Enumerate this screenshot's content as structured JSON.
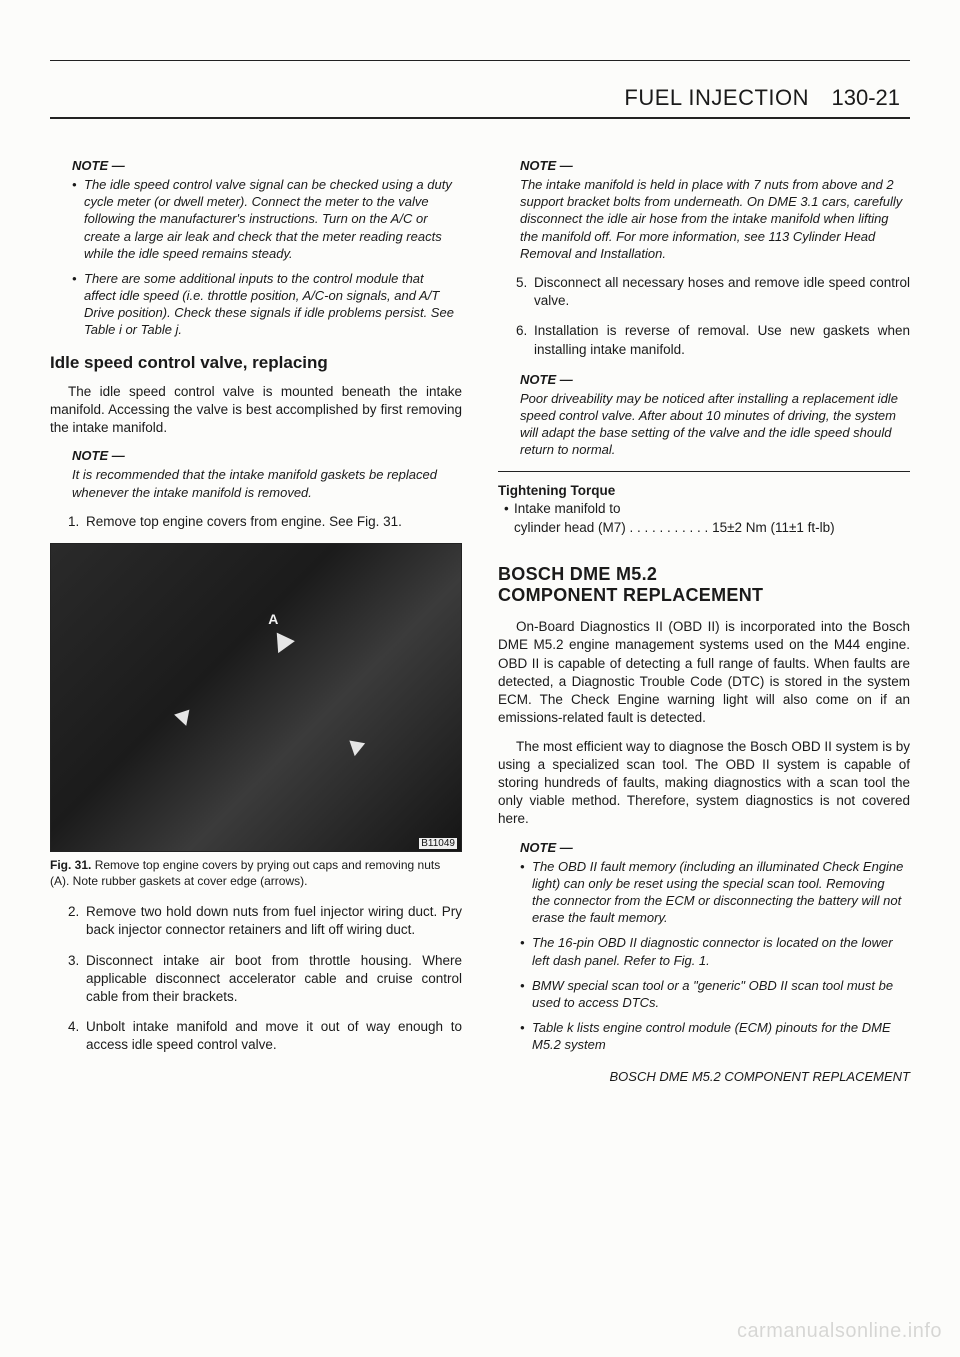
{
  "header": {
    "section": "FUEL INJECTION",
    "page_number": "130-21"
  },
  "left_col": {
    "note1_head": "NOTE —",
    "note1_items": [
      "The idle speed control valve signal can be checked using a duty cycle meter (or dwell meter). Connect the meter to the valve following the manufacturer's instructions. Turn on the A/C or create a large air leak and check that the meter reading reacts while the idle speed remains steady.",
      "There are some additional inputs to the control module that affect idle speed (i.e. throttle position, A/C-on signals, and A/T Drive position). Check these signals if idle problems persist. See Table i or Table j."
    ],
    "h_sub": "Idle speed control valve, replacing",
    "para1": "The idle speed control valve is mounted beneath the intake manifold. Accessing the valve is best accomplished by first removing the intake manifold.",
    "note2_head": "NOTE —",
    "note2_body": "It is recommended that the intake manifold gaskets be replaced whenever the intake manifold is removed.",
    "step1": "Remove top engine covers from engine. See Fig. 31.",
    "photo_id": "B11049",
    "fig_label": "Fig. 31.",
    "fig_caption": "Remove top engine covers by prying out caps and removing nuts (A). Note rubber gaskets at cover edge (arrows).",
    "step2": "Remove two hold down nuts from fuel injector wiring duct. Pry back injector connector retainers and lift off wiring duct.",
    "step3": "Disconnect intake air boot from throttle housing. Where applicable disconnect accelerator cable and cruise control cable from their brackets.",
    "step4": "Unbolt intake manifold and move it out of way enough to access idle speed control valve."
  },
  "right_col": {
    "note1_head": "NOTE —",
    "note1_body": "The intake manifold is held in place with 7 nuts from above and 2 support bracket bolts from underneath. On DME 3.1 cars, carefully disconnect the idle air hose from the intake manifold when lifting the manifold off. For more information, see 113 Cylinder Head Removal and Installation.",
    "step5": "Disconnect all necessary hoses and remove idle speed control valve.",
    "step6": "Installation is reverse of removal. Use new gaskets when installing intake manifold.",
    "note2_head": "NOTE —",
    "note2_body": "Poor driveability may be noticed after installing a replacement idle speed control valve. After about 10 minutes of driving, the system will adapt the base setting of the valve and the idle speed should return to normal.",
    "torque_head": "Tightening Torque",
    "torque_item": "Intake manifold to",
    "torque_line": "cylinder head (M7) . . . . . . . . . . . 15±2 Nm (11±1 ft-lb)",
    "h_major1": "BOSCH DME M5.2",
    "h_major2": "COMPONENT REPLACEMENT",
    "para1": "On-Board Diagnostics II (OBD II) is incorporated into the Bosch DME M5.2 engine management systems used on the M44 engine. OBD II is capable of detecting a full range of faults. When faults are detected, a Diagnostic Trouble Code (DTC) is stored in the system ECM. The Check Engine warning light will also come on if an emissions-related fault is detected.",
    "para2": "The most efficient way to diagnose the Bosch OBD II system is by using a specialized scan tool. The OBD II system is capable of storing hundreds of faults, making diagnostics with a scan tool the only viable method. Therefore, system diagnostics is not covered here.",
    "note3_head": "NOTE —",
    "note3_items": [
      "The OBD II fault memory (including an illuminated Check Engine light) can only be reset using the special scan tool. Removing the connector from the ECM or disconnecting the battery will not erase the fault memory.",
      "The 16-pin OBD II diagnostic connector is located on the lower left dash panel. Refer to Fig. 1.",
      "BMW special scan tool or a \"generic\" OBD II scan tool must be used to access DTCs.",
      "Table k lists engine control module (ECM) pinouts for the DME M5.2 system"
    ],
    "footer": "BOSCH DME M5.2 COMPONENT REPLACEMENT"
  },
  "watermark": "carmanualsonline.info"
}
